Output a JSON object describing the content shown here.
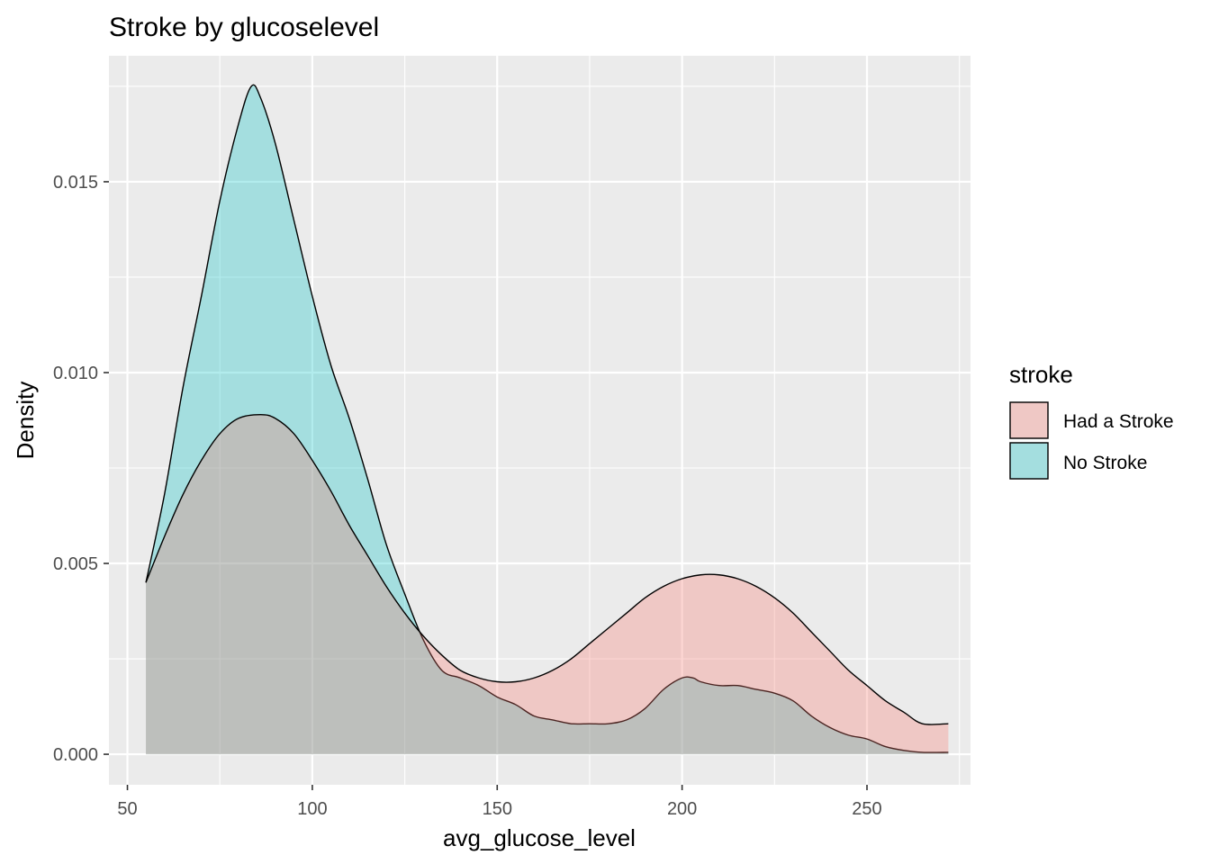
{
  "chart_data": {
    "type": "area",
    "title": "Stroke by glucoselevel",
    "xlabel": "avg_glucose_level",
    "ylabel": "Density",
    "xlim": [
      45,
      278
    ],
    "ylim": [
      -0.0008,
      0.0183
    ],
    "x_ticks": [
      50,
      100,
      150,
      200,
      250
    ],
    "y_ticks": [
      0.0,
      0.005,
      0.01,
      0.015
    ],
    "x_tick_labels": [
      "50",
      "100",
      "150",
      "200",
      "250"
    ],
    "y_tick_labels": [
      "0.000",
      "0.005",
      "0.010",
      "0.015"
    ],
    "grid": true,
    "legend_position": "right",
    "legend_title": "stroke",
    "fill_opacity": 0.3,
    "series": [
      {
        "name": "No Stroke",
        "color": "#00BFC4",
        "x": [
          55,
          60,
          65,
          70,
          75,
          80,
          83.5,
          86,
          90,
          95,
          100,
          105,
          110,
          115,
          120,
          125,
          130,
          135,
          140,
          145,
          150,
          155,
          160,
          165,
          170,
          175,
          180,
          185,
          190,
          195,
          200,
          203,
          205,
          210,
          215,
          220,
          225,
          230,
          235,
          240,
          245,
          250,
          255,
          260,
          265,
          272
        ],
        "y": [
          0.0045,
          0.0068,
          0.0096,
          0.012,
          0.0145,
          0.0165,
          0.0175,
          0.0172,
          0.016,
          0.014,
          0.012,
          0.0102,
          0.0088,
          0.0072,
          0.0055,
          0.0042,
          0.003,
          0.0022,
          0.002,
          0.0018,
          0.0015,
          0.0013,
          0.001,
          0.0009,
          0.0008,
          0.0008,
          0.0008,
          0.0009,
          0.0012,
          0.0017,
          0.002,
          0.002,
          0.0019,
          0.0018,
          0.0018,
          0.0017,
          0.0016,
          0.0014,
          0.001,
          0.0007,
          0.0005,
          0.0004,
          0.0002,
          0.0001,
          5e-05,
          5e-05
        ]
      },
      {
        "name": "Had a Stroke",
        "color": "#F8766D",
        "x": [
          55,
          60,
          65,
          70,
          75,
          80,
          86,
          90,
          95,
          100,
          105,
          110,
          115,
          120,
          125,
          130,
          135,
          140,
          145,
          150,
          155,
          160,
          165,
          170,
          175,
          180,
          185,
          190,
          195,
          200,
          205,
          210,
          215,
          220,
          225,
          230,
          235,
          240,
          245,
          250,
          255,
          260,
          265,
          272
        ],
        "y": [
          0.0045,
          0.0057,
          0.0068,
          0.0077,
          0.0084,
          0.0088,
          0.0089,
          0.0088,
          0.0084,
          0.0077,
          0.0069,
          0.006,
          0.0052,
          0.0044,
          0.0037,
          0.0031,
          0.0026,
          0.0022,
          0.002,
          0.0019,
          0.0019,
          0.002,
          0.0022,
          0.0025,
          0.0029,
          0.0033,
          0.0037,
          0.0041,
          0.0044,
          0.0046,
          0.0047,
          0.0047,
          0.0046,
          0.0044,
          0.0041,
          0.0037,
          0.0032,
          0.0027,
          0.0022,
          0.0018,
          0.0014,
          0.0011,
          0.0008,
          0.0008
        ]
      }
    ]
  }
}
